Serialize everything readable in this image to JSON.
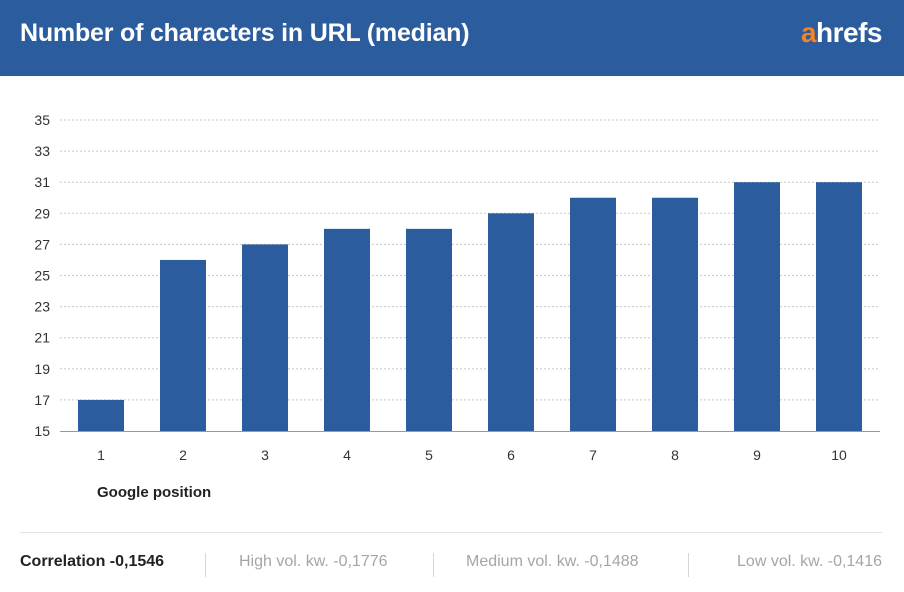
{
  "header": {
    "title": "Number of characters in URL (median)",
    "logo_first": "a",
    "logo_rest": "hrefs"
  },
  "colors": {
    "header_bg": "#2b5c9e",
    "bar": "#2b5c9e",
    "logo_accent": "#f58220",
    "grid": "#c8c8c8"
  },
  "chart_data": {
    "type": "bar",
    "title": "Number of characters in URL (median)",
    "categories": [
      "1",
      "2",
      "3",
      "4",
      "5",
      "6",
      "7",
      "8",
      "9",
      "10"
    ],
    "values": [
      17,
      26,
      27,
      28,
      28,
      29,
      30,
      30,
      31,
      31
    ],
    "yticks": [
      "35",
      "33",
      "31",
      "29",
      "27",
      "25",
      "23",
      "21",
      "19",
      "17",
      "15"
    ],
    "xlabel": "Google position",
    "ylabel": "",
    "ylim": [
      15,
      35
    ],
    "grid": true,
    "legend": "none"
  },
  "footer": {
    "correlation": "Correlation -0,1546",
    "high_vol": "High vol. kw. -0,1776",
    "medium_vol": "Medium vol. kw. -0,1488",
    "low_vol": "Low vol. kw. -0,1416"
  }
}
